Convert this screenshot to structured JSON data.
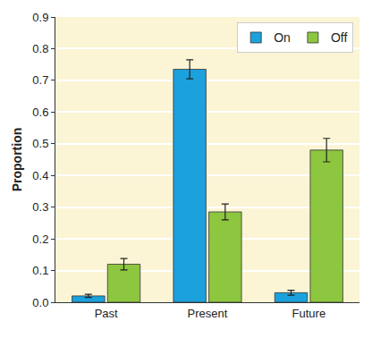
{
  "chart_data": {
    "type": "bar",
    "y_label": "Proportion",
    "categories": [
      "Past",
      "Present",
      "Future"
    ],
    "series": [
      {
        "name": "On",
        "color": "#1ba1dc",
        "values": [
          0.02,
          0.735,
          0.03
        ],
        "errors": [
          0.005,
          0.03,
          0.008
        ]
      },
      {
        "name": "Off",
        "color": "#8dc63f",
        "values": [
          0.12,
          0.285,
          0.48
        ],
        "errors": [
          0.018,
          0.025,
          0.037
        ]
      }
    ],
    "ylim": [
      0,
      0.9
    ],
    "yticks": [
      {
        "value": 0,
        "label": "0.0"
      },
      0.1,
      0.2,
      0.3,
      0.4,
      0.5,
      0.6,
      0.7,
      0.8,
      0.9
    ],
    "grid": true,
    "legend": "top right"
  }
}
